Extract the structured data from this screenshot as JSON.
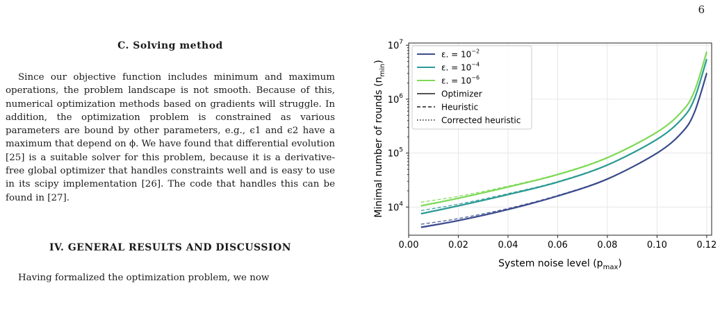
{
  "page": {
    "number": "6",
    "section_c": {
      "heading": "C.   Solving method",
      "paragraph": "Since our objective function includes minimum and maximum operations, the problem landscape is not smooth. Because of this, numerical optimization methods based on gradients will struggle. In addition, the optimization problem is constrained as various parameters are bound by other parameters, e.g., ϵ1 and ϵ2 have a maximum that depend on ϕ. We have found that differential evolution [25] is a suitable solver for this problem, because it is a derivative-free global optimizer that handles constraints well and is easy to use in its scipy implementation [26]. The code that handles this can be found in [27]."
    },
    "section_iv": {
      "heading": "IV.   GENERAL RESULTS AND DISCUSSION",
      "paragraph": "Having formalized the optimization problem, we now"
    }
  },
  "chart_data": {
    "type": "line",
    "xlabel": "System noise level (p",
    "xlabel_sub": "max",
    "xlabel_close": ")",
    "ylabel": "Minimal number of rounds (n",
    "ylabel_sub": "min",
    "ylabel_close": ")",
    "xlim": [
      0.0,
      0.122
    ],
    "ylim": [
      3000,
      11000000
    ],
    "yscale": "log",
    "grid": true,
    "legend_position": "upper-left",
    "xticks": [
      {
        "value": 0.0,
        "label": "0.00"
      },
      {
        "value": 0.02,
        "label": "0.02"
      },
      {
        "value": 0.04,
        "label": "0.04"
      },
      {
        "value": 0.06,
        "label": "0.06"
      },
      {
        "value": 0.08,
        "label": "0.08"
      },
      {
        "value": 0.1,
        "label": "0.10"
      },
      {
        "value": 0.12,
        "label": "0.12"
      }
    ],
    "yticks": [
      {
        "value": 10000,
        "base": "10",
        "exp": "4"
      },
      {
        "value": 100000,
        "base": "10",
        "exp": "5"
      },
      {
        "value": 1000000,
        "base": "10",
        "exp": "6"
      },
      {
        "value": 10000000,
        "base": "10",
        "exp": "7"
      }
    ],
    "colors": {
      "dark": "#3b4b8c",
      "teal": "#2a9a94",
      "light": "#7ed957",
      "gray": "#555555"
    },
    "x": [
      0.005,
      0.02,
      0.04,
      0.06,
      0.08,
      0.1,
      0.11,
      0.115,
      0.12
    ],
    "series": [
      {
        "name": "ε. = 10",
        "exp": "−2",
        "color": "#3b4b8c",
        "variant": "optimizer",
        "values": [
          4200,
          5600,
          9000,
          16000,
          33000,
          100000,
          240000,
          560000,
          3000000
        ]
      },
      {
        "name": "ε. = 10",
        "exp": "−2",
        "color": "#3b4b8c",
        "variant": "heuristic",
        "values": [
          4800,
          6100,
          9400,
          16400,
          33500,
          101000,
          243000,
          570000,
          3100000
        ]
      },
      {
        "name": "ε. = 10",
        "exp": "−2",
        "color": "#3b4b8c",
        "variant": "corrected",
        "values": [
          4300,
          5700,
          9100,
          16100,
          33200,
          100500,
          241000,
          565000,
          3050000
        ]
      },
      {
        "name": "ε. = 10",
        "exp": "−4",
        "color": "#2a9a94",
        "variant": "optimizer",
        "values": [
          7500,
          10500,
          17000,
          29000,
          60000,
          180000,
          430000,
          1000000,
          5500000
        ]
      },
      {
        "name": "ε. = 10",
        "exp": "−4",
        "color": "#2a9a94",
        "variant": "heuristic",
        "values": [
          8600,
          11300,
          17700,
          29600,
          61000,
          182000,
          436000,
          1010000,
          5600000
        ]
      },
      {
        "name": "ε. = 10",
        "exp": "−4",
        "color": "#2a9a94",
        "variant": "corrected",
        "values": [
          7700,
          10700,
          17200,
          29200,
          60400,
          181000,
          433000,
          1005000,
          5550000
        ]
      },
      {
        "name": "ε. = 10",
        "exp": "−6",
        "color": "#7ed957",
        "variant": "optimizer",
        "values": [
          10500,
          14500,
          23500,
          40000,
          82000,
          245000,
          590000,
          1380000,
          7500000
        ]
      },
      {
        "name": "ε. = 10",
        "exp": "−6",
        "color": "#7ed957",
        "variant": "heuristic",
        "values": [
          12300,
          15800,
          24400,
          40800,
          83500,
          248000,
          597000,
          1395000,
          7700000
        ]
      },
      {
        "name": "ε. = 10",
        "exp": "−6",
        "color": "#7ed957",
        "variant": "corrected",
        "values": [
          10800,
          14800,
          23800,
          40300,
          82600,
          246000,
          593000,
          1387000,
          7600000
        ]
      }
    ],
    "legend": [
      {
        "label": "ε. = 10",
        "exp": "−2",
        "color": "#3b4b8c",
        "style": "solid"
      },
      {
        "label": "ε. = 10",
        "exp": "−4",
        "color": "#2a9a94",
        "style": "solid"
      },
      {
        "label": "ε. = 10",
        "exp": "−6",
        "color": "#7ed957",
        "style": "solid"
      },
      {
        "label": "Optimizer",
        "exp": "",
        "color": "#555555",
        "style": "solid"
      },
      {
        "label": "Heuristic",
        "exp": "",
        "color": "#555555",
        "style": "dashed"
      },
      {
        "label": "Corrected heuristic",
        "exp": "",
        "color": "#555555",
        "style": "dotted"
      }
    ]
  }
}
